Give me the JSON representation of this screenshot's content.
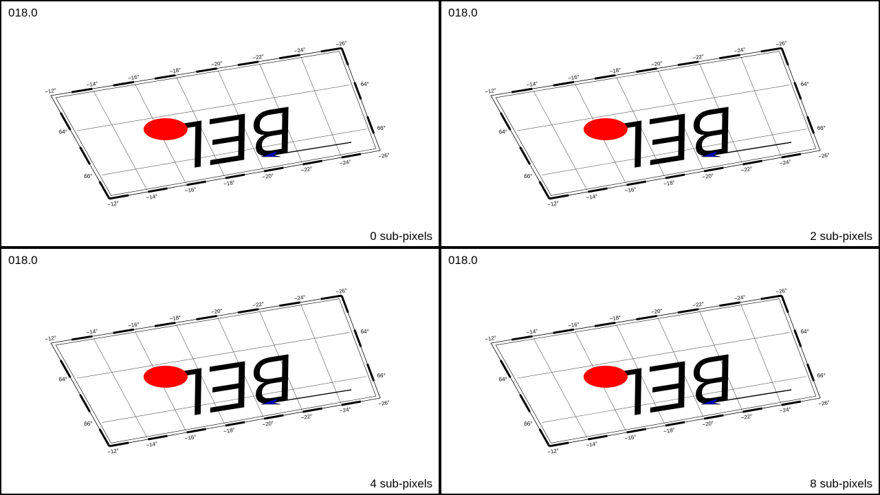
{
  "panels": [
    {
      "frame": "018.0",
      "subpixels": "0 sub-pixels"
    },
    {
      "frame": "018.0",
      "subpixels": "2 sub-pixels"
    },
    {
      "frame": "018.0",
      "subpixels": "4 sub-pixels"
    },
    {
      "frame": "018.0",
      "subpixels": "8 sub-pixels"
    }
  ],
  "map": {
    "text": "BEL",
    "top_lon_labels": [
      "−12°",
      "−14°",
      "−16°",
      "−18°",
      "−20°",
      "−22°",
      "−24°",
      "−26°"
    ],
    "bottom_lon_labels": [
      "−12°",
      "−14°",
      "−16°",
      "−18°",
      "−20°",
      "−22°",
      "−24°",
      "−26°"
    ],
    "left_lat_labels": [
      "64°",
      "66°"
    ],
    "right_lat_labels": [
      "64°",
      "66°"
    ],
    "colors": {
      "dot": "#ff0000",
      "arrow_head": "#0000c8",
      "frame": "#000000",
      "grid": "#555555"
    }
  }
}
